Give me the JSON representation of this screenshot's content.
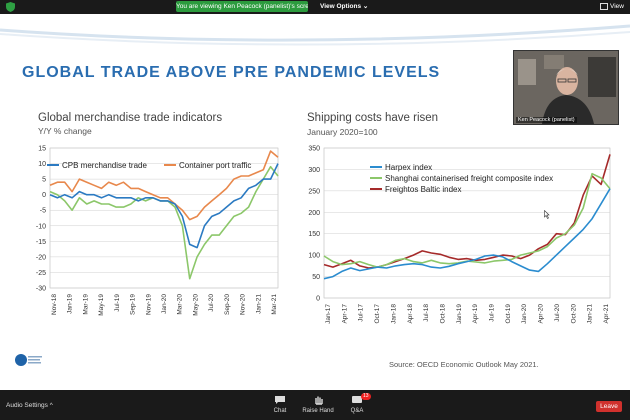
{
  "topbar": {
    "banner_text": "You are viewing Ken Peacock (panelist)'s screen",
    "view_options_label": "View Options ⌄",
    "view_label": "View"
  },
  "slide": {
    "title": "GLOBAL TRADE ABOVE PRE PANDEMIC LEVELS",
    "source": "Source: OECD Economic Outlook May 2021."
  },
  "video": {
    "participant_name": "Ken Peacock (panelist)"
  },
  "bottombar": {
    "audio_settings_label": "Audio Settings ^",
    "chat_label": "Chat",
    "raise_hand_label": "Raise Hand",
    "qa_label": "Q&A",
    "qa_badge": "13",
    "leave_label": "Leave"
  },
  "chart_data": [
    {
      "type": "line",
      "title": "Global merchandise trade indicators",
      "subtitle": "Y/Y % change",
      "ylim": [
        -30,
        15
      ],
      "yticks": [
        15,
        10,
        5,
        0,
        -5,
        -10,
        -15,
        -20,
        -25,
        -30
      ],
      "xtick_labels": [
        "Nov-18",
        "Jan-19",
        "Mar-19",
        "May-19",
        "Jul-19",
        "Sep-19",
        "Nov-19",
        "Jan-20",
        "Mar-20",
        "May-20",
        "Jul-20",
        "Sep-20",
        "Nov-20",
        "Jan-21",
        "Mar-21"
      ],
      "series": [
        {
          "name": "CPB merchandise trade",
          "color": "#2b7ac2",
          "values": [
            0,
            -1,
            0,
            -1,
            1,
            0,
            0,
            -1,
            0,
            -1,
            -1,
            -1,
            -2,
            -1,
            -1,
            -2,
            -2,
            -3,
            -7,
            -16,
            -17,
            -10,
            -7,
            -6,
            -4,
            -2,
            -1,
            2,
            3,
            5,
            5,
            10
          ]
        },
        {
          "name": "Container port traffic",
          "color": "#e8884c",
          "values": [
            3,
            4,
            4,
            1,
            5,
            4,
            3,
            2,
            4,
            3,
            4,
            2,
            2,
            1,
            0,
            -1,
            -1,
            -3,
            -5,
            -8,
            -7,
            -4,
            -2,
            0,
            2,
            5,
            6,
            6,
            7,
            8,
            14,
            12
          ]
        },
        {
          "name": "",
          "color": "#8cc76a",
          "values": [
            1,
            0,
            -2,
            -5,
            -1,
            -3,
            -2,
            -3,
            -3,
            -4,
            -4,
            -3,
            -1,
            -2,
            -1,
            -2,
            -2,
            -4,
            -10,
            -27,
            -20,
            -16,
            -13,
            -13,
            -10,
            -7,
            -6,
            -4,
            1,
            5,
            9,
            6
          ]
        }
      ]
    },
    {
      "type": "line",
      "title": "Shipping costs have risen",
      "subtitle": "January 2020=100",
      "ylim": [
        0,
        350
      ],
      "yticks": [
        350,
        300,
        250,
        200,
        150,
        100,
        50,
        0
      ],
      "xtick_labels": [
        "Jan-17",
        "Apr-17",
        "Jul-17",
        "Oct-17",
        "Jan-18",
        "Apr-18",
        "Jul-18",
        "Oct-18",
        "Jan-19",
        "Apr-19",
        "Jul-19",
        "Oct-19",
        "Jan-20",
        "Apr-20",
        "Jul-20",
        "Oct-20",
        "Jan-21",
        "Apr-21"
      ],
      "series": [
        {
          "name": "Harpex index",
          "color": "#2b8ccf",
          "values": [
            45,
            50,
            62,
            70,
            64,
            68,
            72,
            70,
            75,
            78,
            80,
            78,
            72,
            70,
            74,
            80,
            85,
            90,
            98,
            100,
            96,
            85,
            75,
            65,
            62,
            80,
            100,
            120,
            140,
            160,
            185,
            220,
            255
          ]
        },
        {
          "name": "Shanghai containerised freight composite index",
          "color": "#8cc76a",
          "values": [
            98,
            85,
            78,
            80,
            85,
            78,
            72,
            78,
            88,
            92,
            85,
            82,
            88,
            82,
            80,
            82,
            86,
            84,
            82,
            86,
            88,
            90,
            100,
            105,
            110,
            120,
            140,
            150,
            170,
            210,
            290,
            280,
            255
          ]
        },
        {
          "name": "Freightos Baltic index",
          "color": "#a52a2a",
          "values": [
            78,
            72,
            80,
            88,
            75,
            70,
            72,
            78,
            85,
            92,
            100,
            110,
            105,
            102,
            95,
            90,
            92,
            88,
            90,
            95,
            100,
            98,
            92,
            100,
            115,
            125,
            150,
            148,
            175,
            240,
            285,
            265,
            335
          ]
        }
      ]
    }
  ]
}
